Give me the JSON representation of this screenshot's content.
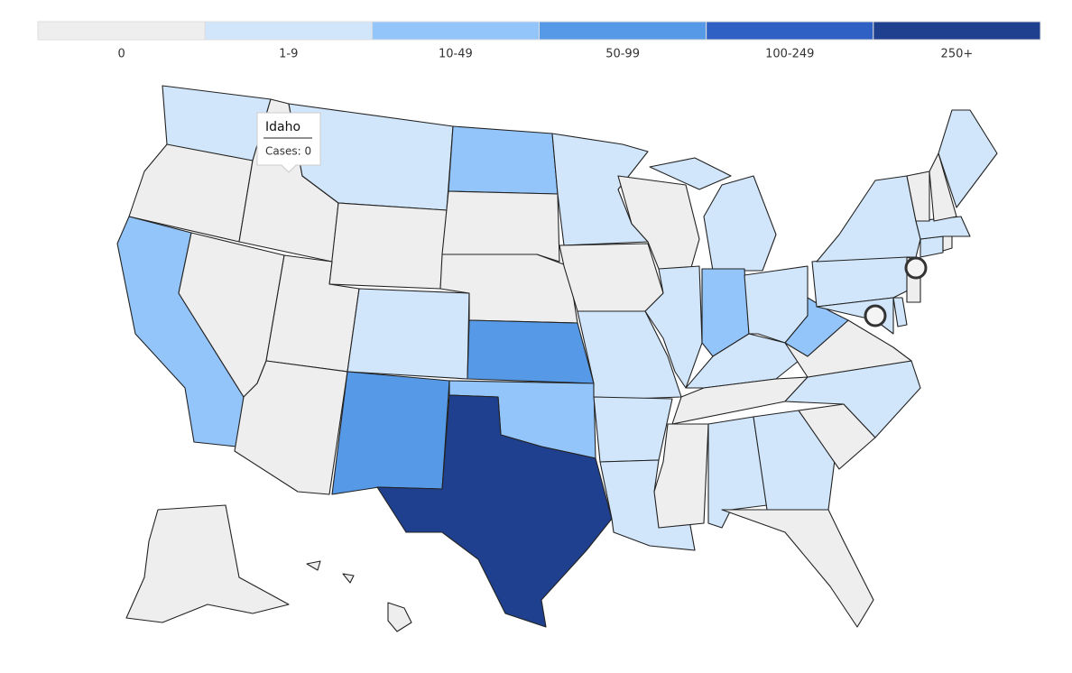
{
  "legend": {
    "bins": [
      {
        "label": "0",
        "color": "#eeeeee"
      },
      {
        "label": "1-9",
        "color": "#d1e6fb"
      },
      {
        "label": "10-49",
        "color": "#93c5fb"
      },
      {
        "label": "50-99",
        "color": "#569ae7"
      },
      {
        "label": "100-249",
        "color": "#2f61c4"
      },
      {
        "label": "250+",
        "color": "#1f3f8f"
      }
    ]
  },
  "map": {
    "regions": [
      1,
      0,
      2,
      0,
      0,
      1,
      0,
      0,
      0,
      1,
      3,
      2,
      0,
      0,
      3,
      2,
      5,
      1,
      0,
      1,
      1,
      1,
      0,
      1,
      1,
      1,
      2,
      1,
      1,
      0,
      0,
      1,
      1,
      0,
      0,
      1,
      0,
      2,
      1,
      1,
      1,
      1,
      0,
      1,
      0,
      1,
      0,
      0,
      1,
      0,
      0,
      0,
      0
    ]
  },
  "tooltip": {
    "title": "Idaho",
    "text": "Cases: 0"
  }
}
